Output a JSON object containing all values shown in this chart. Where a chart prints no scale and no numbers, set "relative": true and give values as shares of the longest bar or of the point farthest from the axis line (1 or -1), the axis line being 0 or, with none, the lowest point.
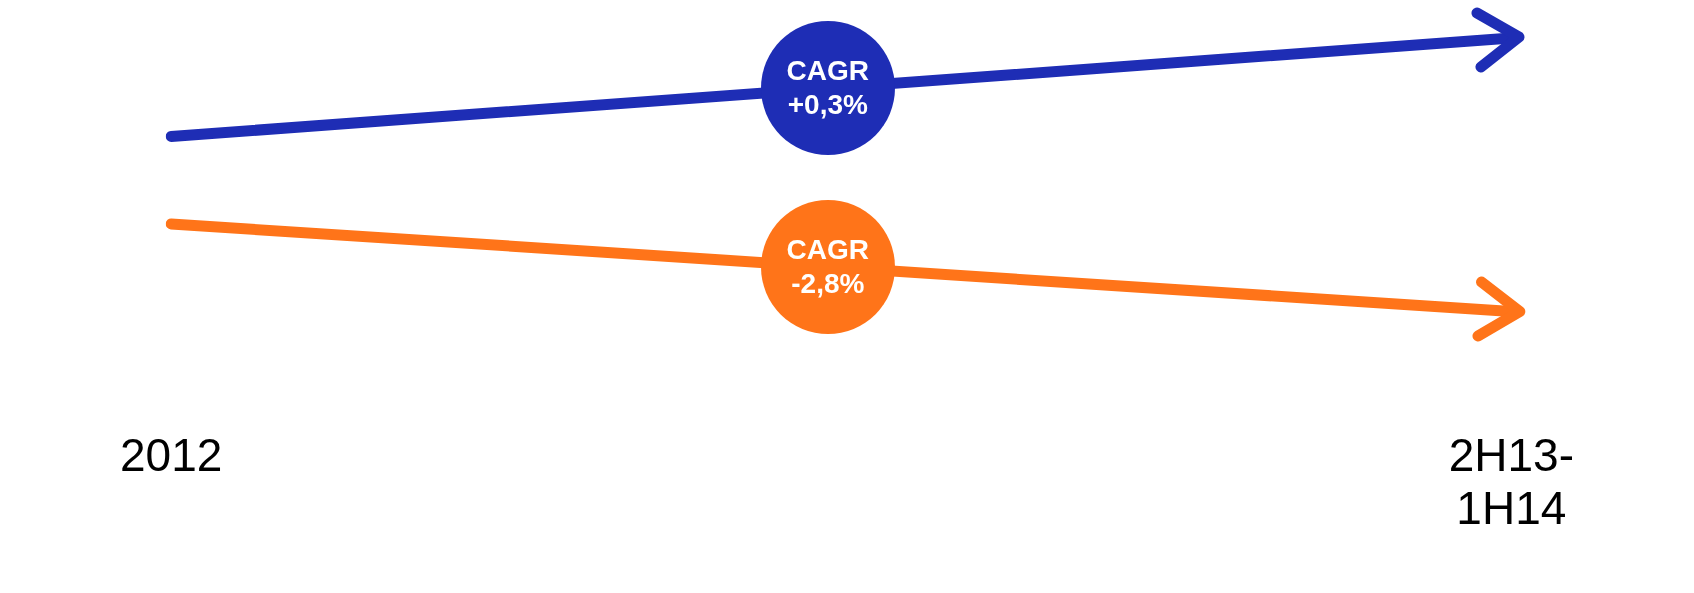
{
  "chart_data": {
    "type": "line",
    "relative": true,
    "categories": [
      "2012",
      "2H13-1H14"
    ],
    "series": [
      {
        "color": "#1e2db5",
        "values": [
          0.64,
          1
        ]
      },
      {
        "color": "#ff7419",
        "values": [
          0.32,
          0
        ]
      }
    ],
    "annotations": [
      "CAGR +0,3%",
      "CAGR -2,8%"
    ],
    "marker": "none",
    "grid": false,
    "legend": false
  }
}
